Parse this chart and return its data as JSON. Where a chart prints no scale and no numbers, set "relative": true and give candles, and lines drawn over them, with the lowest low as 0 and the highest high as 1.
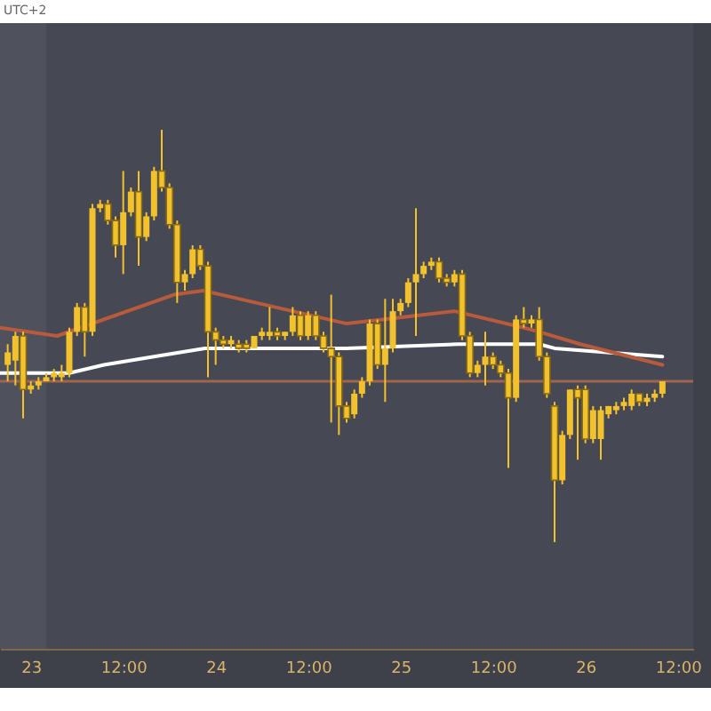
{
  "chart_data": {
    "type": "candlestick",
    "relative": true,
    "color": "#f2c12e",
    "annotations": [
      "UTC+2"
    ],
    "x": [
      "--01-22T21:00",
      "--01-22T22:00",
      "--01-22T23:00",
      "--01-23T00:00",
      "--01-23T01:00",
      "--01-23T02:00",
      "--01-23T03:00",
      "--01-23T04:00",
      "--01-23T05:00",
      "--01-23T06:00",
      "--01-23T07:00",
      "--01-23T08:00",
      "--01-23T09:00",
      "--01-23T10:00",
      "--01-23T11:00",
      "--01-23T12:00",
      "--01-23T13:00",
      "--01-23T14:00",
      "--01-23T15:00",
      "--01-23T16:00",
      "--01-23T17:00",
      "--01-23T18:00",
      "--01-23T19:00",
      "--01-23T20:00",
      "--01-23T21:00",
      "--01-23T22:00",
      "--01-23T23:00",
      "--01-24T00:00",
      "--01-24T01:00",
      "--01-24T02:00",
      "--01-24T03:00",
      "--01-24T04:00",
      "--01-24T05:00",
      "--01-24T06:00",
      "--01-24T07:00",
      "--01-24T08:00",
      "--01-24T09:00",
      "--01-24T10:00",
      "--01-24T11:00",
      "--01-24T12:00",
      "--01-24T13:00",
      "--01-24T14:00",
      "--01-24T15:00",
      "--01-24T16:00",
      "--01-24T17:00",
      "--01-24T18:00",
      "--01-24T19:00",
      "--01-24T20:00",
      "--01-24T21:00",
      "--01-24T22:00",
      "--01-24T23:00",
      "--01-25T00:00",
      "--01-25T01:00",
      "--01-25T02:00",
      "--01-25T03:00",
      "--01-25T04:00",
      "--01-25T05:00",
      "--01-25T06:00",
      "--01-25T07:00",
      "--01-25T08:00",
      "--01-25T09:00",
      "--01-25T10:00",
      "--01-25T11:00",
      "--01-25T12:00",
      "--01-25T13:00",
      "--01-25T14:00",
      "--01-25T15:00",
      "--01-25T16:00",
      "--01-25T17:00",
      "--01-25T18:00",
      "--01-25T19:00",
      "--01-25T20:00",
      "--01-25T21:00",
      "--01-25T22:00",
      "--01-25T23:00",
      "--01-26T00:00",
      "--01-26T01:00",
      "--01-26T02:00",
      "--01-26T03:00",
      "--01-26T04:00",
      "--01-26T05:00",
      "--01-26T06:00",
      "--01-26T07:00",
      "--01-26T08:00",
      "--01-26T09:00",
      "--01-26T10:00"
    ],
    "ohlc": [
      [
        0.43,
        0.48,
        0.39,
        0.46
      ],
      [
        0.44,
        0.51,
        0.38,
        0.5
      ],
      [
        0.5,
        0.51,
        0.3,
        0.37
      ],
      [
        0.37,
        0.39,
        0.36,
        0.38
      ],
      [
        0.38,
        0.4,
        0.37,
        0.39
      ],
      [
        0.39,
        0.41,
        0.39,
        0.4
      ],
      [
        0.4,
        0.42,
        0.39,
        0.41
      ],
      [
        0.4,
        0.43,
        0.39,
        0.41
      ],
      [
        0.41,
        0.52,
        0.4,
        0.51
      ],
      [
        0.51,
        0.58,
        0.5,
        0.57
      ],
      [
        0.57,
        0.58,
        0.45,
        0.51
      ],
      [
        0.51,
        0.82,
        0.5,
        0.81
      ],
      [
        0.81,
        0.83,
        0.8,
        0.82
      ],
      [
        0.82,
        0.83,
        0.77,
        0.78
      ],
      [
        0.78,
        0.79,
        0.69,
        0.72
      ],
      [
        0.72,
        0.9,
        0.65,
        0.8
      ],
      [
        0.8,
        0.86,
        0.79,
        0.85
      ],
      [
        0.85,
        0.9,
        0.67,
        0.74
      ],
      [
        0.74,
        0.8,
        0.73,
        0.79
      ],
      [
        0.79,
        0.91,
        0.78,
        0.9
      ],
      [
        0.9,
        1,
        0.85,
        0.86
      ],
      [
        0.86,
        0.87,
        0.76,
        0.77
      ],
      [
        0.77,
        0.78,
        0.58,
        0.63
      ],
      [
        0.63,
        0.66,
        0.61,
        0.65
      ],
      [
        0.65,
        0.72,
        0.64,
        0.71
      ],
      [
        0.71,
        0.72,
        0.66,
        0.67
      ],
      [
        0.67,
        0.68,
        0.4,
        0.51
      ],
      [
        0.51,
        0.52,
        0.43,
        0.49
      ],
      [
        0.49,
        0.5,
        0.47,
        0.48
      ],
      [
        0.48,
        0.5,
        0.47,
        0.49
      ],
      [
        0.48,
        0.49,
        0.46,
        0.47
      ],
      [
        0.48,
        0.49,
        0.46,
        0.47
      ],
      [
        0.47,
        0.5,
        0.47,
        0.5
      ],
      [
        0.5,
        0.52,
        0.49,
        0.51
      ],
      [
        0.5,
        0.57,
        0.49,
        0.51
      ],
      [
        0.51,
        0.52,
        0.49,
        0.5
      ],
      [
        0.5,
        0.51,
        0.49,
        0.51
      ],
      [
        0.51,
        0.57,
        0.5,
        0.55
      ],
      [
        0.55,
        0.56,
        0.49,
        0.5
      ],
      [
        0.5,
        0.56,
        0.49,
        0.55
      ],
      [
        0.55,
        0.56,
        0.49,
        0.5
      ],
      [
        0.5,
        0.51,
        0.46,
        0.47
      ],
      [
        0.47,
        0.6,
        0.29,
        0.45
      ],
      [
        0.45,
        0.46,
        0.26,
        0.33
      ],
      [
        0.33,
        0.34,
        0.29,
        0.3
      ],
      [
        0.31,
        0.37,
        0.3,
        0.36
      ],
      [
        0.36,
        0.4,
        0.35,
        0.39
      ],
      [
        0.39,
        0.54,
        0.38,
        0.53
      ],
      [
        0.53,
        0.54,
        0.42,
        0.43
      ],
      [
        0.43,
        0.59,
        0.34,
        0.47
      ],
      [
        0.47,
        0.59,
        0.46,
        0.56
      ],
      [
        0.56,
        0.59,
        0.55,
        0.58
      ],
      [
        0.58,
        0.64,
        0.57,
        0.63
      ],
      [
        0.63,
        0.81,
        0.5,
        0.65
      ],
      [
        0.65,
        0.68,
        0.64,
        0.67
      ],
      [
        0.67,
        0.69,
        0.66,
        0.68
      ],
      [
        0.68,
        0.69,
        0.63,
        0.64
      ],
      [
        0.64,
        0.65,
        0.62,
        0.63
      ],
      [
        0.63,
        0.66,
        0.62,
        0.65
      ],
      [
        0.65,
        0.66,
        0.49,
        0.5
      ],
      [
        0.5,
        0.51,
        0.4,
        0.41
      ],
      [
        0.41,
        0.44,
        0.4,
        0.43
      ],
      [
        0.43,
        0.51,
        0.38,
        0.45
      ],
      [
        0.45,
        0.46,
        0.42,
        0.43
      ],
      [
        0.43,
        0.44,
        0.4,
        0.41
      ],
      [
        0.41,
        0.42,
        0.18,
        0.35
      ],
      [
        0.35,
        0.55,
        0.34,
        0.54
      ],
      [
        0.54,
        0.57,
        0.52,
        0.53
      ],
      [
        0.53,
        0.55,
        0.52,
        0.54
      ],
      [
        0.54,
        0.57,
        0.44,
        0.45
      ],
      [
        0.45,
        0.46,
        0.35,
        0.36
      ],
      [
        0.33,
        0.34,
        0,
        0.15
      ],
      [
        0.15,
        0.27,
        0.14,
        0.26
      ],
      [
        0.26,
        0.37,
        0.25,
        0.37
      ],
      [
        0.37,
        0.38,
        0.2,
        0.35
      ],
      [
        0.37,
        0.38,
        0.24,
        0.25
      ],
      [
        0.25,
        0.33,
        0.24,
        0.32
      ],
      [
        0.25,
        0.33,
        0.2,
        0.32
      ],
      [
        0.31,
        0.33,
        0.3,
        0.33
      ],
      [
        0.32,
        0.34,
        0.31,
        0.33
      ],
      [
        0.33,
        0.35,
        0.32,
        0.34
      ],
      [
        0.33,
        0.37,
        0.32,
        0.36
      ],
      [
        0.36,
        0.36,
        0.33,
        0.34
      ],
      [
        0.34,
        0.36,
        0.33,
        0.35
      ],
      [
        0.35,
        0.37,
        0.34,
        0.36
      ],
      [
        0.36,
        0.39,
        0.35,
        0.39
      ]
    ],
    "series": [
      {
        "type": "line",
        "color": "#ffffff",
        "x": [
          "--01-22T20:00",
          "--01-23T05:00",
          "--01-23T09:30",
          "--01-23T16:00",
          "--01-23T22:35",
          "--01-24T17:00",
          "--01-25T07:30",
          "--01-25T18:00",
          "--01-25T20:00",
          "--01-26T10:00"
        ],
        "values": [
          0.41,
          0.41,
          0.43,
          0.45,
          0.47,
          0.47,
          0.48,
          0.48,
          0.47,
          0.45
        ]
      },
      {
        "type": "line",
        "color": "#b85a3c",
        "x": [
          "--01-22T20:00",
          "--01-23T03:25",
          "--01-23T18:35",
          "--01-23T22:25",
          "--01-24T17:00",
          "--01-24T21:40",
          "--01-25T07:00",
          "--01-25T16:00",
          "--01-25T18:00",
          "--01-25T23:20",
          "--01-26T10:00"
        ],
        "values": [
          0.52,
          0.5,
          0.6,
          0.61,
          0.53,
          0.54,
          0.56,
          0.52,
          0.51,
          0.48,
          0.43
        ]
      }
    ],
    "xlim": [
      "--01-22T20:00",
      "--01-26T14:00"
    ],
    "xticks": [
      {
        "value": "--01-23T00:00",
        "label": "23"
      },
      {
        "value": "--01-23T12:00",
        "label": "12:00"
      },
      {
        "value": "--01-24T00:00",
        "label": "24"
      },
      {
        "value": "--01-24T12:00",
        "label": "12:00"
      },
      {
        "value": "--01-25T00:00",
        "label": "25"
      },
      {
        "value": "--01-25T12:00",
        "label": "12:00"
      },
      {
        "value": "--01-26T00:00",
        "label": "26"
      },
      {
        "value": "--01-26T12:00",
        "label": "12:00"
      }
    ],
    "ref_lines": [
      {
        "axis": "y",
        "value": 0.39,
        "color": "#a0664c"
      }
    ],
    "bands": [
      {
        "axis": "x",
        "from": "--01-22T20:00",
        "to": "--01-23T02:00",
        "color": "#4f515c"
      }
    ],
    "grid": false
  }
}
